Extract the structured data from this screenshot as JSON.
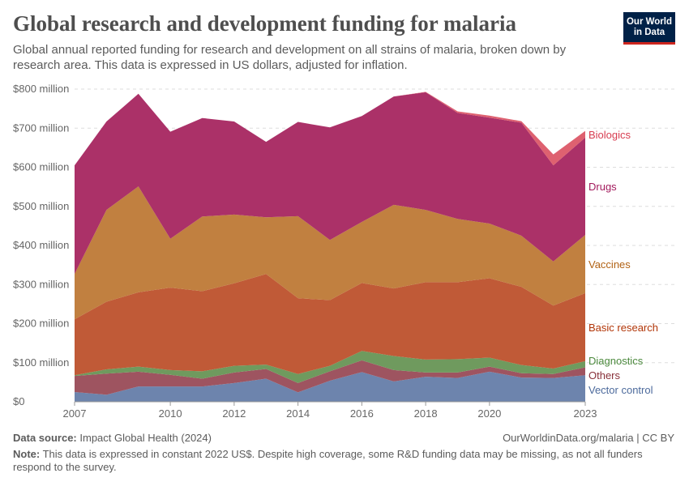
{
  "title": "Global research and development funding for malaria",
  "subtitle": "Global annual reported funding for research and development on all strains of malaria, broken down by research area. This data is expressed in US dollars, adjusted for inflation.",
  "logo": "Our World in Data",
  "footer": {
    "source_label": "Data source:",
    "source": "Impact Global Health (2024)",
    "url": "OurWorldinData.org/malaria | CC BY",
    "note_label": "Note:",
    "note": "This data is expressed in constant 2022 US$. Despite high coverage, some R&D funding data may be missing, as not all funders respond to the survey."
  },
  "chart_data": {
    "type": "area",
    "stacked": true,
    "title": "Global research and development funding for malaria",
    "x": [
      2007,
      2008,
      2009,
      2010,
      2011,
      2012,
      2013,
      2014,
      2015,
      2016,
      2017,
      2018,
      2019,
      2020,
      2021,
      2022,
      2023
    ],
    "xticks": [
      "2007",
      "2010",
      "2012",
      "2014",
      "2016",
      "2018",
      "2020",
      "2023"
    ],
    "yticks": [
      "$0",
      "$100 million",
      "$200 million",
      "$300 million",
      "$400 million",
      "$500 million",
      "$600 million",
      "$700 million",
      "$800 million"
    ],
    "ylim": [
      0,
      800
    ],
    "unit": "million US$",
    "grid": true,
    "legend": "right-inline",
    "series": [
      {
        "name": "Vector control",
        "color": "#6d84ad",
        "label_color": "#4c6a9c",
        "values": [
          25,
          18,
          39,
          39,
          39,
          48,
          59,
          24,
          54,
          76,
          52,
          64,
          61,
          77,
          62,
          61,
          68
        ]
      },
      {
        "name": "Others",
        "color": "#9e5460",
        "label_color": "#883039",
        "values": [
          41,
          54,
          38,
          30,
          20,
          27,
          25,
          24,
          24,
          30,
          29,
          11,
          14,
          13,
          11,
          10,
          20
        ]
      },
      {
        "name": "Diagnostics",
        "color": "#6f9a5e",
        "label_color": "#4c8a3e",
        "values": [
          2,
          11,
          13,
          12,
          19,
          17,
          11,
          23,
          14,
          24,
          36,
          33,
          34,
          23,
          21,
          14,
          16
        ]
      },
      {
        "name": "Basic research",
        "color": "#c05a37",
        "label_color": "#b13507",
        "values": [
          143,
          173,
          190,
          211,
          205,
          211,
          232,
          194,
          168,
          174,
          173,
          198,
          197,
          203,
          200,
          161,
          174
        ]
      },
      {
        "name": "Vaccines",
        "color": "#c18040",
        "label_color": "#b16214",
        "values": [
          116,
          235,
          271,
          125,
          191,
          176,
          145,
          210,
          154,
          156,
          214,
          185,
          162,
          140,
          131,
          113,
          149
        ]
      },
      {
        "name": "Drugs",
        "color": "#ab3168",
        "label_color": "#a2195c",
        "values": [
          278,
          226,
          237,
          274,
          252,
          238,
          193,
          241,
          288,
          271,
          277,
          301,
          271,
          271,
          289,
          246,
          249
        ]
      },
      {
        "name": "Biologics",
        "color": "#de6170",
        "label_color": "#d73c50",
        "values": [
          0,
          0,
          0,
          0,
          0,
          0,
          0,
          0,
          0,
          0,
          0,
          1,
          4,
          5,
          4,
          28,
          17
        ]
      }
    ]
  }
}
